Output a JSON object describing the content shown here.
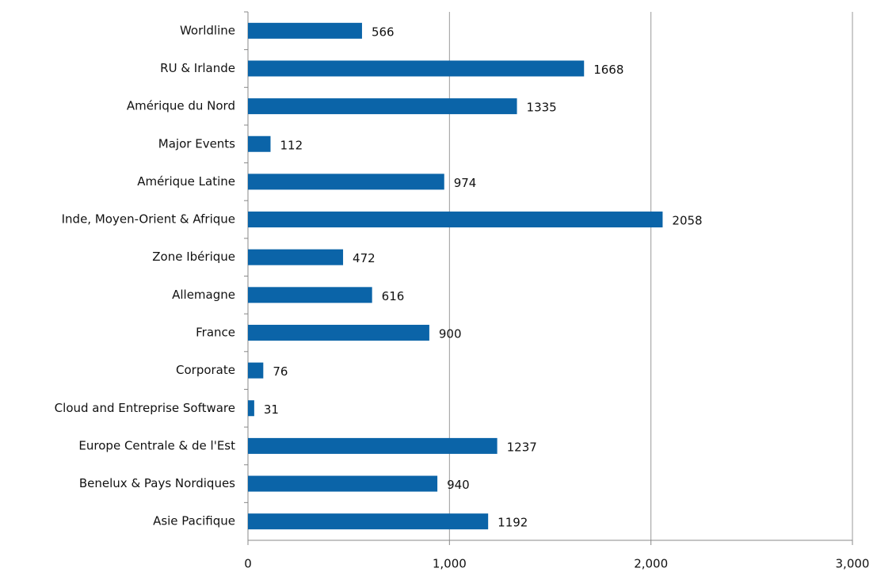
{
  "chart_data": {
    "type": "bar",
    "orientation": "horizontal",
    "categories": [
      "Worldline",
      "RU & Irlande",
      "Amérique du Nord",
      "Major Events",
      "Amérique Latine",
      "Inde, Moyen-Orient & Afrique",
      "Zone Ibérique",
      "Allemagne",
      "France",
      "Corporate",
      "Cloud and Entreprise Software",
      "Europe Centrale & de l'Est",
      "Benelux & Pays Nordiques",
      "Asie Pacifique"
    ],
    "values": [
      566,
      1668,
      1335,
      112,
      974,
      2058,
      472,
      616,
      900,
      76,
      31,
      1237,
      940,
      1192
    ],
    "color": "#0b64a8",
    "xlim": [
      0,
      3000
    ],
    "xticks": [
      0,
      {
        "value": 1000,
        "label": "1,000"
      },
      {
        "value": 2000,
        "label": "2,000"
      },
      {
        "value": 3000,
        "label": "3,000"
      }
    ],
    "grid": true
  }
}
